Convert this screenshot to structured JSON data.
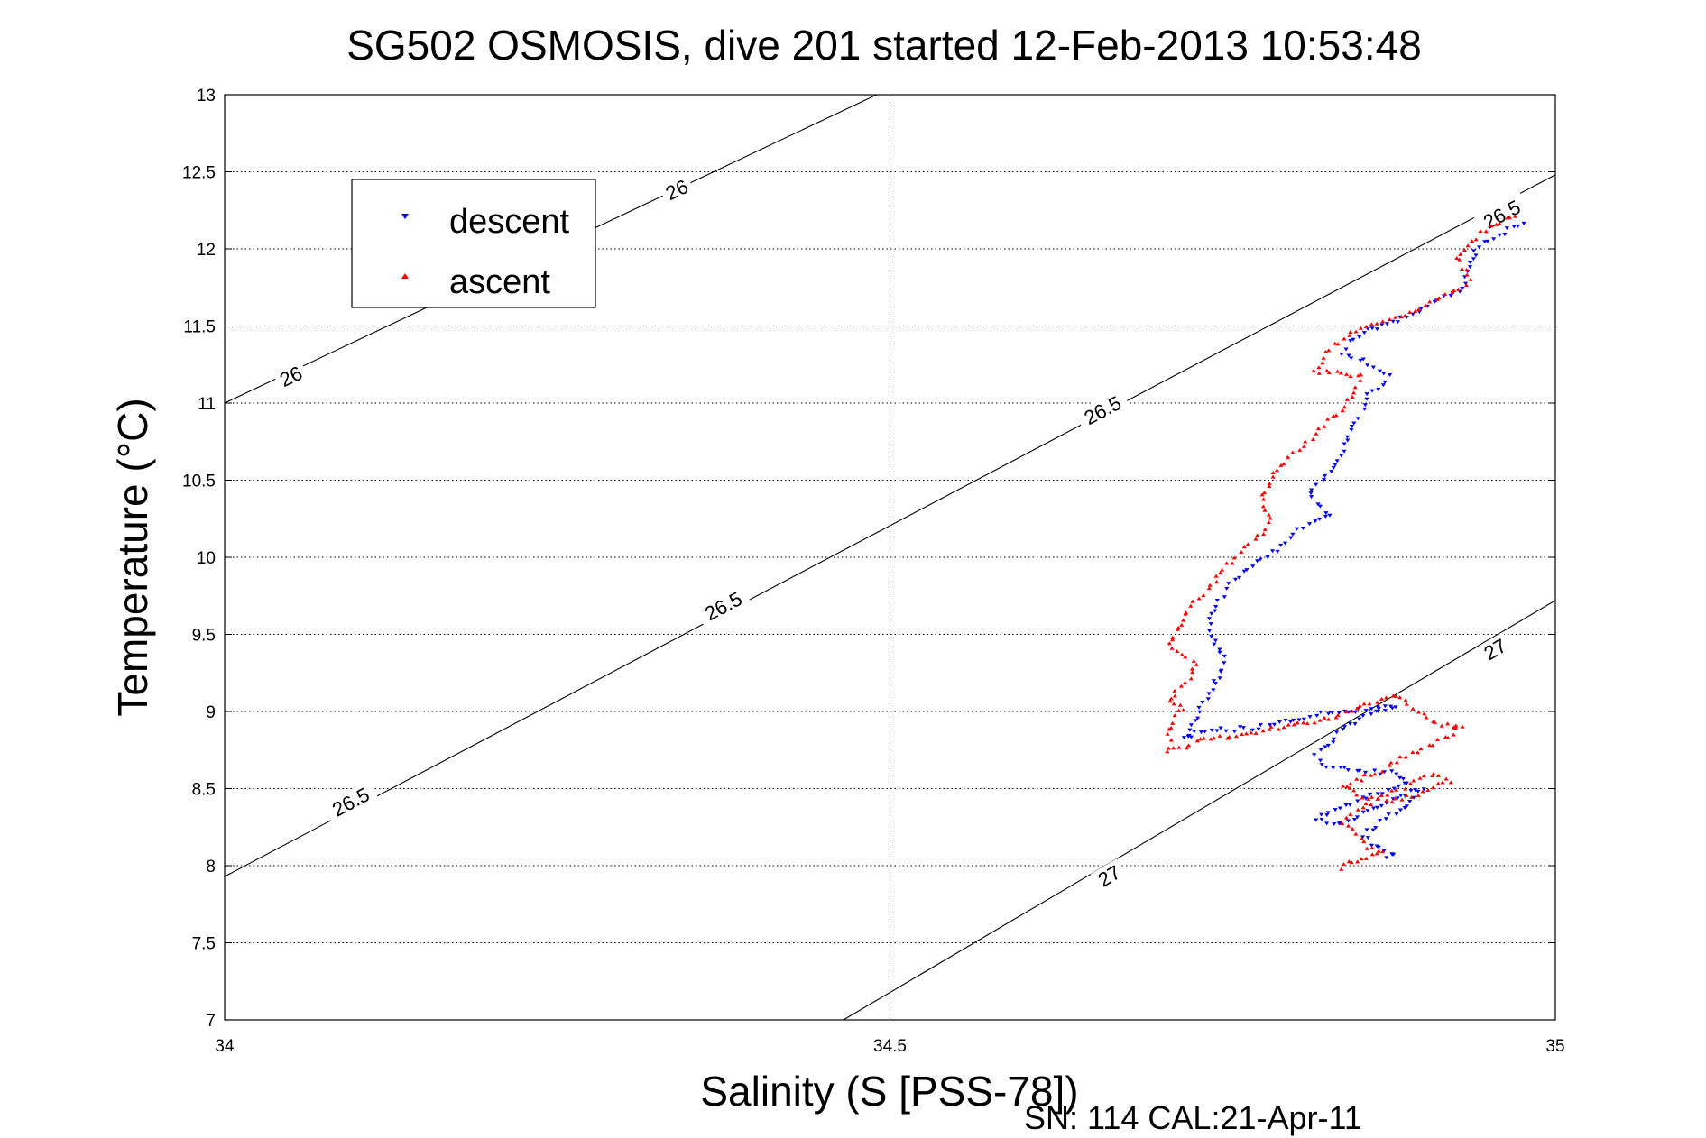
{
  "chart_data": {
    "type": "scatter",
    "title": "SG502 OSMOSIS, dive 201 started 12-Feb-2013 10:53:48",
    "xlabel": "Salinity (S [PSS-78])",
    "ylabel": "Temperature (°C)",
    "xlim": [
      34,
      35
    ],
    "ylim": [
      7,
      13
    ],
    "x_ticks": [
      "34",
      "34.5",
      "35"
    ],
    "y_ticks": [
      "7",
      "7.5",
      "8",
      "8.5",
      "9",
      "9.5",
      "10",
      "10.5",
      "11",
      "11.5",
      "12",
      "12.5",
      "13"
    ],
    "grid": true,
    "legend": {
      "placement": "upper-left",
      "entries": [
        {
          "label": "descent",
          "color": "#0000ff",
          "marker": "down-triangle"
        },
        {
          "label": "ascent",
          "color": "#ff0000",
          "marker": "up-triangle"
        }
      ]
    },
    "footer": "SN: 114  CAL:21-Apr-11",
    "density_contours": [
      {
        "level": "26",
        "color": "#000000",
        "points": [
          [
            34.0,
            11.0
          ],
          [
            34.49,
            13.0
          ]
        ]
      },
      {
        "level": "26.5",
        "color": "#000000",
        "points": [
          [
            34.0,
            7.93
          ],
          [
            35.0,
            12.48
          ]
        ]
      },
      {
        "level": "27",
        "color": "#000000",
        "points": [
          [
            34.465,
            7.0
          ],
          [
            35.0,
            9.72
          ]
        ]
      }
    ],
    "contour_labels": [
      {
        "text": "26",
        "x": 34.34,
        "y": 12.38
      },
      {
        "text": "26",
        "x": 34.05,
        "y": 11.17
      },
      {
        "text": "26.5",
        "x": 34.96,
        "y": 12.22
      },
      {
        "text": "26.5",
        "x": 34.66,
        "y": 10.95
      },
      {
        "text": "26.5",
        "x": 34.375,
        "y": 9.68
      },
      {
        "text": "26.5",
        "x": 34.095,
        "y": 8.41
      },
      {
        "text": "27",
        "x": 34.955,
        "y": 9.4
      },
      {
        "text": "27",
        "x": 34.665,
        "y": 7.93
      }
    ],
    "series": [
      {
        "name": "descent",
        "color": "#0000ff",
        "marker": "down-triangle",
        "path": [
          [
            34.975,
            12.18
          ],
          [
            34.94,
            12.0
          ],
          [
            34.935,
            11.88
          ],
          [
            34.93,
            11.75
          ],
          [
            34.92,
            11.7
          ],
          [
            34.9,
            11.62
          ],
          [
            34.885,
            11.55
          ],
          [
            34.86,
            11.47
          ],
          [
            34.845,
            11.4
          ],
          [
            34.84,
            11.33
          ],
          [
            34.86,
            11.26
          ],
          [
            34.875,
            11.18
          ],
          [
            34.87,
            11.12
          ],
          [
            34.86,
            11.05
          ],
          [
            34.855,
            10.95
          ],
          [
            34.85,
            10.88
          ],
          [
            34.845,
            10.78
          ],
          [
            34.84,
            10.7
          ],
          [
            34.835,
            10.6
          ],
          [
            34.825,
            10.5
          ],
          [
            34.815,
            10.42
          ],
          [
            34.82,
            10.35
          ],
          [
            34.83,
            10.27
          ],
          [
            34.81,
            10.2
          ],
          [
            34.8,
            10.12
          ],
          [
            34.79,
            10.05
          ],
          [
            34.775,
            9.98
          ],
          [
            34.765,
            9.9
          ],
          [
            34.755,
            9.82
          ],
          [
            34.75,
            9.75
          ],
          [
            34.745,
            9.68
          ],
          [
            34.74,
            9.6
          ],
          [
            34.74,
            9.52
          ],
          [
            34.745,
            9.44
          ],
          [
            34.75,
            9.36
          ],
          [
            34.75,
            9.28
          ],
          [
            34.745,
            9.2
          ],
          [
            34.74,
            9.12
          ],
          [
            34.735,
            9.05
          ],
          [
            34.73,
            8.97
          ],
          [
            34.725,
            8.88
          ],
          [
            34.72,
            8.82
          ],
          [
            34.73,
            8.86
          ],
          [
            34.75,
            8.88
          ],
          [
            34.78,
            8.9
          ],
          [
            34.8,
            8.94
          ],
          [
            34.82,
            8.98
          ],
          [
            34.845,
            9.0
          ],
          [
            34.865,
            9.02
          ],
          [
            34.88,
            9.04
          ],
          [
            34.86,
            8.98
          ],
          [
            34.84,
            8.88
          ],
          [
            34.82,
            8.72
          ],
          [
            34.825,
            8.66
          ],
          [
            34.85,
            8.62
          ],
          [
            34.88,
            8.6
          ],
          [
            34.89,
            8.55
          ],
          [
            34.87,
            8.48
          ],
          [
            34.85,
            8.42
          ],
          [
            34.83,
            8.36
          ],
          [
            34.82,
            8.3
          ],
          [
            34.84,
            8.27
          ],
          [
            34.87,
            8.4
          ],
          [
            34.9,
            8.5
          ],
          [
            34.895,
            8.44
          ],
          [
            34.88,
            8.34
          ],
          [
            34.865,
            8.26
          ],
          [
            34.855,
            8.2
          ],
          [
            34.865,
            8.12
          ],
          [
            34.88,
            8.08
          ],
          [
            34.87,
            8.04
          ]
        ]
      },
      {
        "name": "ascent",
        "color": "#ff0000",
        "marker": "up-triangle",
        "path": [
          [
            34.97,
            12.2
          ],
          [
            34.955,
            12.17
          ],
          [
            34.945,
            12.1
          ],
          [
            34.935,
            12.02
          ],
          [
            34.925,
            11.95
          ],
          [
            34.93,
            11.88
          ],
          [
            34.935,
            11.8
          ],
          [
            34.925,
            11.72
          ],
          [
            34.91,
            11.66
          ],
          [
            34.895,
            11.6
          ],
          [
            34.875,
            11.54
          ],
          [
            34.855,
            11.48
          ],
          [
            34.84,
            11.42
          ],
          [
            34.83,
            11.35
          ],
          [
            34.825,
            11.27
          ],
          [
            34.82,
            11.2
          ],
          [
            34.835,
            11.19
          ],
          [
            34.855,
            11.17
          ],
          [
            34.85,
            11.1
          ],
          [
            34.845,
            11.02
          ],
          [
            34.84,
            10.95
          ],
          [
            34.83,
            10.88
          ],
          [
            34.82,
            10.8
          ],
          [
            34.81,
            10.72
          ],
          [
            34.8,
            10.64
          ],
          [
            34.79,
            10.56
          ],
          [
            34.785,
            10.48
          ],
          [
            34.78,
            10.4
          ],
          [
            34.78,
            10.32
          ],
          [
            34.785,
            10.24
          ],
          [
            34.78,
            10.16
          ],
          [
            34.77,
            10.08
          ],
          [
            34.76,
            10.0
          ],
          [
            34.75,
            9.92
          ],
          [
            34.745,
            9.84
          ],
          [
            34.735,
            9.76
          ],
          [
            34.725,
            9.68
          ],
          [
            34.72,
            9.6
          ],
          [
            34.715,
            9.52
          ],
          [
            34.71,
            9.44
          ],
          [
            34.72,
            9.36
          ],
          [
            34.73,
            9.3
          ],
          [
            34.725,
            9.22
          ],
          [
            34.715,
            9.14
          ],
          [
            34.71,
            9.06
          ],
          [
            34.72,
            9.02
          ],
          [
            34.715,
            8.96
          ],
          [
            34.71,
            8.88
          ],
          [
            34.71,
            8.8
          ],
          [
            34.71,
            8.74
          ],
          [
            34.73,
            8.8
          ],
          [
            34.76,
            8.85
          ],
          [
            34.8,
            8.9
          ],
          [
            34.83,
            8.96
          ],
          [
            34.85,
            9.02
          ],
          [
            34.87,
            9.08
          ],
          [
            34.88,
            9.1
          ],
          [
            34.89,
            9.05
          ],
          [
            34.9,
            8.98
          ],
          [
            34.91,
            8.92
          ],
          [
            34.93,
            8.9
          ],
          [
            34.92,
            8.84
          ],
          [
            34.9,
            8.76
          ],
          [
            34.885,
            8.7
          ],
          [
            34.87,
            8.62
          ],
          [
            34.85,
            8.55
          ],
          [
            34.84,
            8.5
          ],
          [
            34.855,
            8.45
          ],
          [
            34.88,
            8.42
          ],
          [
            34.9,
            8.48
          ],
          [
            34.92,
            8.55
          ],
          [
            34.91,
            8.6
          ],
          [
            34.89,
            8.52
          ],
          [
            34.87,
            8.44
          ],
          [
            34.85,
            8.36
          ],
          [
            34.84,
            8.28
          ],
          [
            34.85,
            8.2
          ],
          [
            34.86,
            8.12
          ],
          [
            34.87,
            8.08
          ],
          [
            34.855,
            8.05
          ],
          [
            34.84,
            8.0
          ],
          [
            34.835,
            7.95
          ]
        ]
      }
    ]
  }
}
